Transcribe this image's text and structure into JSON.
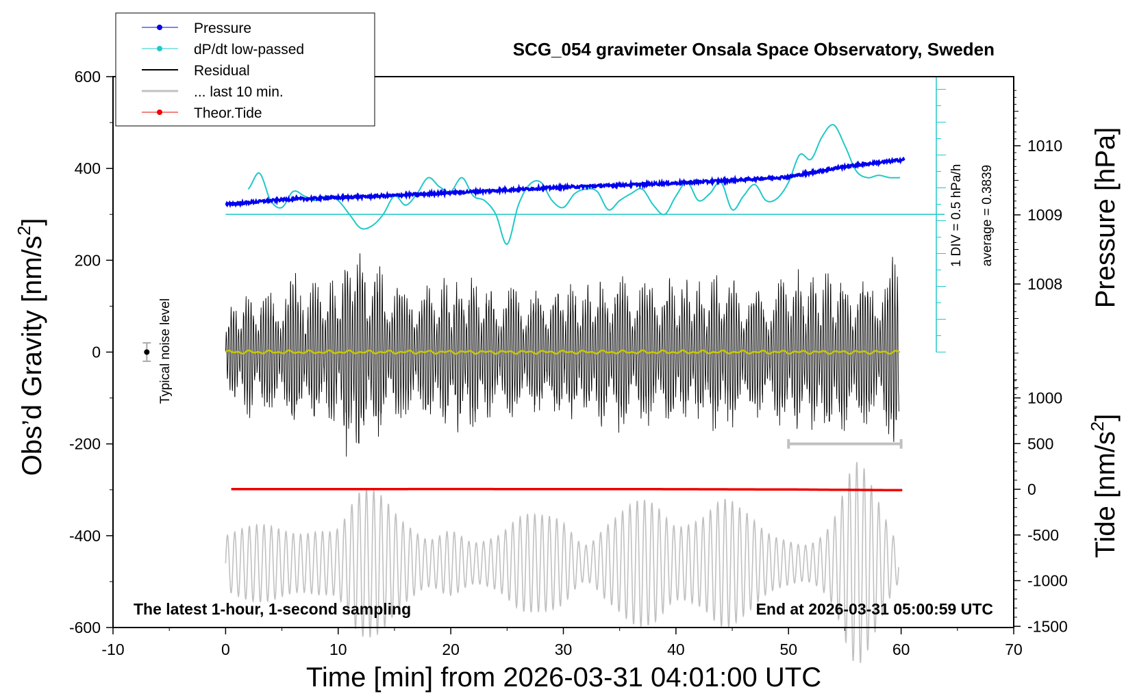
{
  "chart_data": {
    "type": "line",
    "title": "SCG_054 gravimeter Onsala Space Observatory, Sweden",
    "xlabel": "Time [min] from 2026-03-31 04:01:00 UTC",
    "ylabel_left": "Obs’d Gravity [nm/s",
    "ylabel_left_sup": "2",
    "ylabel_left_tail": "]",
    "ylabel_right_pressure": "Pressure [hPa]",
    "ylabel_right_tide": "Tide [nm/s",
    "ylabel_right_tide_sup": "2",
    "ylabel_right_tide_tail": "]",
    "xlim": [
      -10,
      70
    ],
    "ylim_left": [
      -600,
      600
    ],
    "x_ticks": [
      -10,
      0,
      10,
      20,
      30,
      40,
      50,
      60,
      70
    ],
    "x_tick_labels": [
      "-10",
      "0",
      "10",
      "20",
      "30",
      "40",
      "50",
      "60",
      "70"
    ],
    "y_left_ticks": [
      600,
      400,
      200,
      0,
      -200,
      -400,
      -600
    ],
    "y_left_tick_labels": [
      "600",
      "400",
      "200",
      "0",
      "-200",
      "-400",
      "-600"
    ],
    "pressure_ticks": [
      1010,
      1009,
      1008
    ],
    "pressure_tick_labels": [
      "1010",
      "1009",
      "1008"
    ],
    "tide_ticks": [
      1000,
      500,
      0,
      -500,
      -1000,
      -1500
    ],
    "tide_tick_labels": [
      "1000",
      "500",
      "0",
      "-500",
      "-1000",
      "-1500"
    ],
    "legend": {
      "placement": "top-left",
      "entries": [
        "Pressure",
        "dP/dt low-passed",
        "Residual",
        "... last 10 min.",
        "Theor.Tide"
      ]
    },
    "colors": {
      "pressure": "#0000ee",
      "dpdt": "#20c8c8",
      "residual": "#000000",
      "last10": "#c0c0c0",
      "tide": "#ee0000",
      "lowpass": "#c8c800"
    },
    "annotations": {
      "noise_label": "Typical noise level",
      "dpdt_scale": "1 DIV = 0.5 hPa/h",
      "dpdt_average": "average = 0.3839",
      "bottom_left": "The latest 1-hour, 1-second sampling",
      "bottom_right": "End at 2026-03-31 05:00:59 UTC"
    },
    "series": [
      {
        "name": "Pressure",
        "axis": "pressure_hPa",
        "x": [
          0,
          5,
          10,
          15,
          20,
          25,
          30,
          35,
          40,
          45,
          50,
          55,
          60.3
        ],
        "y": [
          1009.15,
          1009.22,
          1009.25,
          1009.28,
          1009.32,
          1009.36,
          1009.4,
          1009.43,
          1009.46,
          1009.5,
          1009.55,
          1009.7,
          1009.8
        ]
      },
      {
        "name": "dP/dt low-passed",
        "axis": "left_display",
        "x": [
          2,
          3,
          4,
          5,
          6,
          7,
          8,
          9,
          10,
          11,
          12,
          13,
          14,
          15,
          16,
          17,
          18,
          19,
          20,
          21,
          22,
          23,
          24,
          25,
          26,
          27,
          28,
          29,
          30,
          31,
          32,
          33,
          34,
          35,
          36,
          37,
          38,
          39,
          40,
          41,
          42,
          43,
          44,
          45,
          46,
          47,
          48,
          49,
          50,
          51,
          52,
          53,
          54,
          55,
          56,
          57,
          58,
          59,
          60
        ],
        "y": [
          355,
          390,
          330,
          315,
          350,
          340,
          330,
          340,
          330,
          300,
          270,
          275,
          300,
          340,
          320,
          345,
          380,
          360,
          350,
          380,
          340,
          330,
          300,
          235,
          320,
          365,
          370,
          330,
          315,
          345,
          355,
          350,
          310,
          330,
          345,
          355,
          320,
          300,
          340,
          370,
          330,
          345,
          370,
          310,
          340,
          365,
          330,
          335,
          370,
          430,
          420,
          470,
          495,
          450,
          395,
          380,
          385,
          380,
          380
        ]
      },
      {
        "name": "Residual",
        "axis": "left",
        "x_range": [
          0,
          59.8
        ],
        "amplitude_envelope_x": [
          0,
          2,
          4,
          6,
          8,
          10,
          11.5,
          12,
          14,
          16,
          18,
          20,
          22,
          24,
          26,
          28,
          30,
          32,
          34,
          36,
          38,
          40,
          42,
          44,
          46,
          48,
          50,
          52,
          54,
          56,
          58,
          59.8
        ],
        "amplitude_envelope_y": [
          100,
          150,
          140,
          180,
          170,
          180,
          290,
          230,
          200,
          150,
          170,
          180,
          190,
          140,
          160,
          150,
          170,
          160,
          180,
          190,
          160,
          180,
          160,
          190,
          160,
          150,
          190,
          180,
          200,
          170,
          190,
          230
        ]
      },
      {
        "name": "... last 10 min.",
        "axis": "left",
        "x_range": [
          0,
          59.8
        ],
        "amplitude_envelope_x": [
          0,
          2,
          4,
          6,
          8,
          10,
          12,
          14,
          16,
          18,
          20,
          22,
          24,
          26,
          28,
          30,
          32,
          34,
          36,
          38,
          40,
          42,
          44,
          46,
          48,
          50,
          52,
          54,
          56,
          58,
          59.8
        ],
        "amplitude_envelope_y": [
          70,
          80,
          90,
          90,
          90,
          80,
          160,
          180,
          120,
          60,
          70,
          50,
          80,
          130,
          110,
          90,
          50,
          120,
          150,
          130,
          90,
          130,
          180,
          120,
          70,
          60,
          60,
          110,
          220,
          150,
          60
        ],
        "center": -460
      },
      {
        "name": "Theor.Tide",
        "axis": "tide_nm_s2",
        "x": [
          0.5,
          10,
          20,
          30,
          40,
          50,
          55,
          60.3
        ],
        "y": [
          2,
          2,
          3,
          2,
          1,
          -2,
          -6,
          -10
        ]
      },
      {
        "name": "",
        "axis": "left",
        "x_range": [
          0,
          60
        ],
        "center": 0,
        "amplitude": 4
      }
    ],
    "noise_bar": {
      "x": -7,
      "y": 0,
      "half_range": 20
    },
    "last10_range_bar": {
      "x_start": 50,
      "x_end": 60,
      "y": -200
    }
  }
}
